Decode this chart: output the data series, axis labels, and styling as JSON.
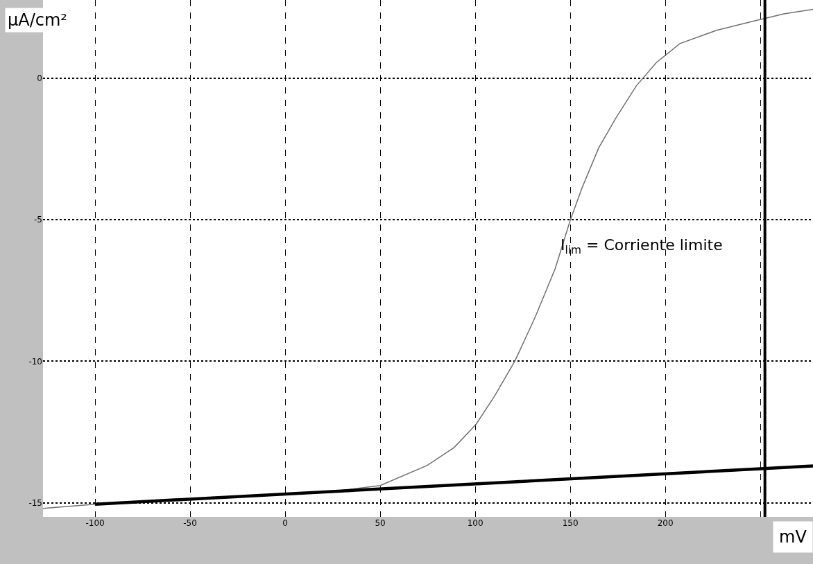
{
  "chart_data": {
    "type": "line",
    "xlabel": "mV",
    "ylabel": "μA/cm²",
    "x": [
      -127.4,
      -100,
      -50,
      0,
      25,
      50,
      74.8,
      89,
      100.4,
      110,
      120.8,
      131.4,
      142,
      150,
      156.2,
      165,
      174,
      184.7,
      195.3,
      207.7,
      227,
      244.9,
      262.4,
      277.7
    ],
    "series": [
      {
        "color": "#707070",
        "values": [
          -15.2,
          -15.05,
          -14.85,
          -14.7,
          -14.6,
          -14.39,
          -13.68,
          -13.04,
          -12.23,
          -11.25,
          -10.0,
          -8.46,
          -6.74,
          -5.01,
          -3.87,
          -2.45,
          -1.4,
          -0.27,
          0.56,
          1.23,
          1.7,
          2.0,
          2.28,
          2.44
        ]
      },
      {
        "color": "#000000",
        "x": [
          -100,
          277.7
        ],
        "values": [
          -15.05,
          -13.7
        ]
      }
    ],
    "xlim": [
      -127.4,
      277.7
    ],
    "ylim": [
      -15.5,
      2.77
    ],
    "xticks": [
      -100,
      -50,
      0,
      50,
      100,
      150,
      200,
      {
        "value": 250,
        "label": null
      }
    ],
    "yticks": [
      0,
      -5,
      -10,
      -15
    ],
    "grid": true,
    "line_style": "solid",
    "marker": "none",
    "ref_lines": [
      {
        "axis": "x",
        "value": 252.4,
        "color": "#000000"
      }
    ],
    "annotations": [
      "I$_{lim}$ = Corriente limite"
    ]
  }
}
